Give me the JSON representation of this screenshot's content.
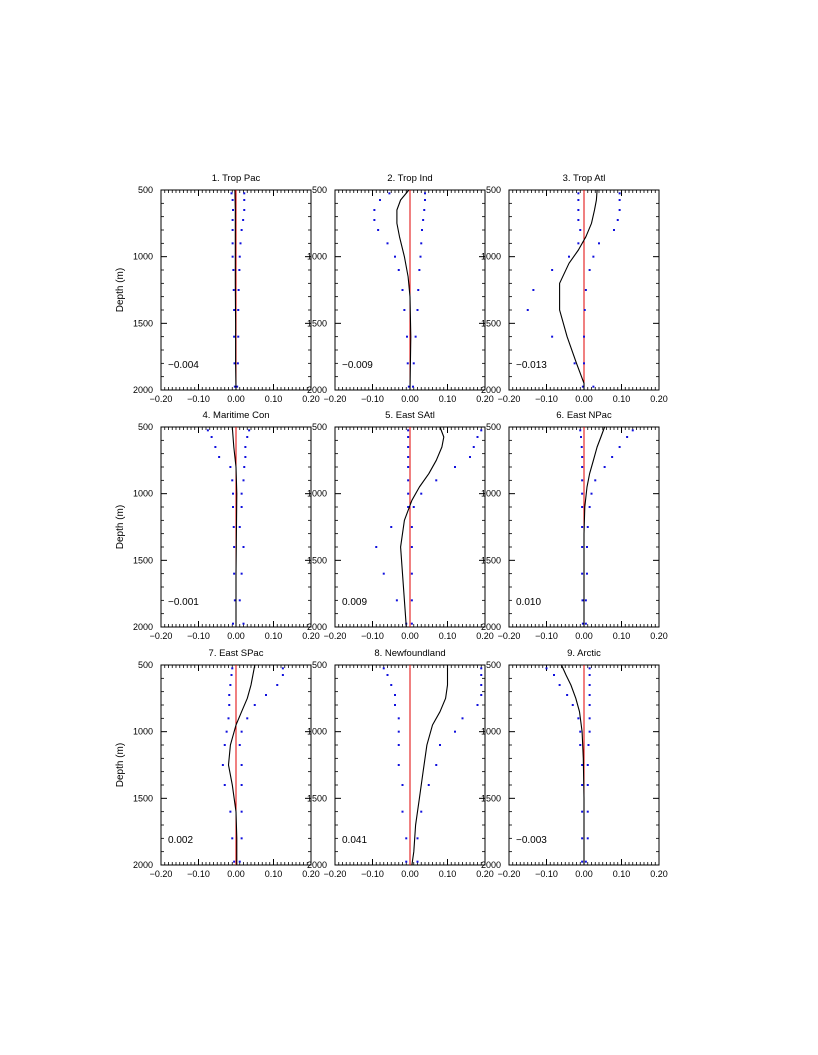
{
  "chart_data": {
    "type": "line",
    "ylabel": "Depth (m)",
    "ylim": [
      2000,
      500
    ],
    "yticks": [
      "500",
      "1000",
      "1500",
      "2000"
    ],
    "xlim": [
      -0.2,
      0.2
    ],
    "xticks": [
      "-0.20",
      "-0.10",
      "0.00",
      "0.10",
      "0.20"
    ],
    "colors": {
      "profile": "#000000",
      "zero": "#e00000",
      "dots": "#1010dd"
    },
    "dot_depths": [
      525,
      575,
      650,
      725,
      800,
      900,
      1000,
      1100,
      1250,
      1400,
      1600,
      1800,
      1975
    ],
    "panels": [
      {
        "title": "1. Trop Pac",
        "mean_label": "-0.004",
        "profile": [
          [
            -0.003,
            500
          ],
          [
            -0.002,
            650
          ],
          [
            -0.002,
            800
          ],
          [
            -0.002,
            1000
          ],
          [
            -0.002,
            1200
          ],
          [
            -0.001,
            1500
          ],
          [
            -0.001,
            1800
          ],
          [
            0.0,
            2000
          ]
        ],
        "left": [
          -0.012,
          -0.009,
          -0.008,
          -0.009,
          -0.009,
          -0.009,
          -0.009,
          -0.007,
          -0.006,
          -0.005,
          -0.005,
          -0.004,
          -0.003
        ],
        "right": [
          0.022,
          0.022,
          0.022,
          0.019,
          0.015,
          0.012,
          0.01,
          0.009,
          0.007,
          0.006,
          0.006,
          0.005,
          0.003
        ]
      },
      {
        "title": "2. Trop Ind",
        "mean_label": "-0.009",
        "profile": [
          [
            -0.003,
            500
          ],
          [
            -0.025,
            575
          ],
          [
            -0.035,
            650
          ],
          [
            -0.035,
            750
          ],
          [
            -0.028,
            850
          ],
          [
            -0.015,
            1000
          ],
          [
            -0.005,
            1150
          ],
          [
            0.0,
            1300
          ],
          [
            0.002,
            1600
          ],
          [
            0.0,
            2000
          ]
        ],
        "left": [
          -0.055,
          -0.08,
          -0.095,
          -0.095,
          -0.085,
          -0.06,
          -0.04,
          -0.03,
          -0.02,
          -0.015,
          -0.008,
          -0.006,
          -0.003
        ],
        "right": [
          0.04,
          0.04,
          0.038,
          0.035,
          0.032,
          0.03,
          0.028,
          0.025,
          0.022,
          0.02,
          0.015,
          0.01,
          0.008
        ]
      },
      {
        "title": "3. Trop Atl",
        "mean_label": "-0.013",
        "profile": [
          [
            0.035,
            500
          ],
          [
            0.033,
            575
          ],
          [
            0.028,
            650
          ],
          [
            0.02,
            750
          ],
          [
            0.005,
            850
          ],
          [
            -0.015,
            950
          ],
          [
            -0.04,
            1050
          ],
          [
            -0.065,
            1200
          ],
          [
            -0.065,
            1400
          ],
          [
            -0.045,
            1600
          ],
          [
            -0.02,
            1800
          ],
          [
            0.0,
            1950
          ],
          [
            0.0,
            2000
          ]
        ],
        "left": [
          -0.015,
          -0.015,
          -0.015,
          -0.015,
          -0.01,
          -0.015,
          -0.04,
          -0.085,
          -0.135,
          -0.15,
          -0.085,
          -0.025,
          -0.003
        ],
        "right": [
          0.095,
          0.095,
          0.095,
          0.09,
          0.08,
          0.04,
          0.025,
          0.015,
          0.005,
          0.002,
          0.0,
          0.0,
          0.025
        ]
      },
      {
        "title": "4. Maritime Con",
        "mean_label": "-0.001",
        "profile": [
          [
            -0.01,
            500
          ],
          [
            -0.006,
            650
          ],
          [
            0.0,
            800
          ],
          [
            0.002,
            1000
          ],
          [
            0.001,
            1300
          ],
          [
            0.0,
            1600
          ],
          [
            0.0,
            2000
          ]
        ],
        "left": [
          -0.075,
          -0.065,
          -0.055,
          -0.045,
          -0.015,
          -0.01,
          -0.008,
          -0.008,
          -0.006,
          -0.005,
          -0.005,
          -0.003,
          -0.008
        ],
        "right": [
          0.035,
          0.03,
          0.025,
          0.025,
          0.022,
          0.02,
          0.015,
          0.015,
          0.01,
          0.02,
          0.015,
          0.01,
          0.02
        ]
      },
      {
        "title": "5. East SAtl",
        "mean_label": "0.009",
        "profile": [
          [
            0.08,
            500
          ],
          [
            0.09,
            575
          ],
          [
            0.085,
            650
          ],
          [
            0.07,
            750
          ],
          [
            0.05,
            850
          ],
          [
            0.025,
            950
          ],
          [
            0.005,
            1050
          ],
          [
            -0.015,
            1200
          ],
          [
            -0.025,
            1400
          ],
          [
            -0.02,
            1600
          ],
          [
            -0.015,
            1800
          ],
          [
            -0.01,
            2000
          ]
        ],
        "left": [
          -0.005,
          -0.005,
          -0.005,
          -0.005,
          -0.005,
          -0.005,
          -0.005,
          -0.005,
          -0.05,
          -0.09,
          -0.07,
          -0.035,
          -0.01
        ],
        "right": [
          0.19,
          0.18,
          0.17,
          0.16,
          0.12,
          0.07,
          0.03,
          0.01,
          0.005,
          0.005,
          0.005,
          0.005,
          0.005
        ]
      },
      {
        "title": "6. East NPac",
        "mean_label": "0.010",
        "profile": [
          [
            0.055,
            500
          ],
          [
            0.045,
            575
          ],
          [
            0.035,
            650
          ],
          [
            0.025,
            750
          ],
          [
            0.015,
            850
          ],
          [
            0.008,
            950
          ],
          [
            0.002,
            1100
          ],
          [
            0.0,
            1300
          ],
          [
            0.0,
            1600
          ],
          [
            0.0,
            2000
          ]
        ],
        "left": [
          -0.01,
          -0.008,
          -0.006,
          -0.005,
          -0.005,
          -0.005,
          -0.005,
          -0.005,
          -0.005,
          -0.005,
          -0.005,
          -0.004,
          -0.003
        ],
        "right": [
          0.13,
          0.115,
          0.095,
          0.075,
          0.055,
          0.03,
          0.02,
          0.015,
          0.01,
          0.008,
          0.008,
          0.005,
          0.005
        ]
      },
      {
        "title": "7. East SPac",
        "mean_label": "0.002",
        "profile": [
          [
            0.05,
            500
          ],
          [
            0.045,
            575
          ],
          [
            0.04,
            650
          ],
          [
            0.03,
            750
          ],
          [
            0.015,
            850
          ],
          [
            0.0,
            950
          ],
          [
            -0.015,
            1100
          ],
          [
            -0.02,
            1250
          ],
          [
            -0.01,
            1400
          ],
          [
            0.0,
            1600
          ],
          [
            0.002,
            1800
          ],
          [
            0.002,
            2000
          ]
        ],
        "left": [
          -0.01,
          -0.012,
          -0.015,
          -0.018,
          -0.018,
          -0.02,
          -0.025,
          -0.03,
          -0.035,
          -0.03,
          -0.015,
          -0.01,
          -0.005
        ],
        "right": [
          0.125,
          0.125,
          0.11,
          0.08,
          0.05,
          0.03,
          0.015,
          0.01,
          0.015,
          0.015,
          0.015,
          0.015,
          0.01
        ]
      },
      {
        "title": "8. Newfoundland",
        "mean_label": "0.041",
        "profile": [
          [
            0.1,
            500
          ],
          [
            0.1,
            575
          ],
          [
            0.1,
            650
          ],
          [
            0.095,
            750
          ],
          [
            0.08,
            850
          ],
          [
            0.06,
            950
          ],
          [
            0.045,
            1100
          ],
          [
            0.035,
            1300
          ],
          [
            0.025,
            1500
          ],
          [
            0.015,
            1700
          ],
          [
            0.01,
            1900
          ],
          [
            0.005,
            2000
          ]
        ],
        "left": [
          -0.07,
          -0.06,
          -0.05,
          -0.04,
          -0.04,
          -0.03,
          -0.03,
          -0.03,
          -0.03,
          -0.02,
          -0.02,
          -0.01,
          -0.01
        ],
        "right": [
          0.19,
          0.19,
          0.19,
          0.19,
          0.18,
          0.14,
          0.12,
          0.08,
          0.07,
          0.05,
          0.03,
          0.02,
          0.02
        ]
      },
      {
        "title": "9. Arctic",
        "mean_label": "-0.003",
        "profile": [
          [
            -0.06,
            500
          ],
          [
            -0.048,
            575
          ],
          [
            -0.035,
            650
          ],
          [
            -0.022,
            750
          ],
          [
            -0.012,
            850
          ],
          [
            -0.005,
            1000
          ],
          [
            -0.002,
            1200
          ],
          [
            0.0,
            1500
          ],
          [
            0.0,
            2000
          ]
        ],
        "left": [
          -0.1,
          -0.08,
          -0.065,
          -0.045,
          -0.03,
          -0.015,
          -0.01,
          -0.01,
          -0.005,
          -0.005,
          -0.005,
          -0.005,
          -0.005
        ],
        "right": [
          0.015,
          0.015,
          0.015,
          0.015,
          0.015,
          0.015,
          0.015,
          0.012,
          0.01,
          0.01,
          0.01,
          0.01,
          0.005
        ]
      }
    ]
  }
}
